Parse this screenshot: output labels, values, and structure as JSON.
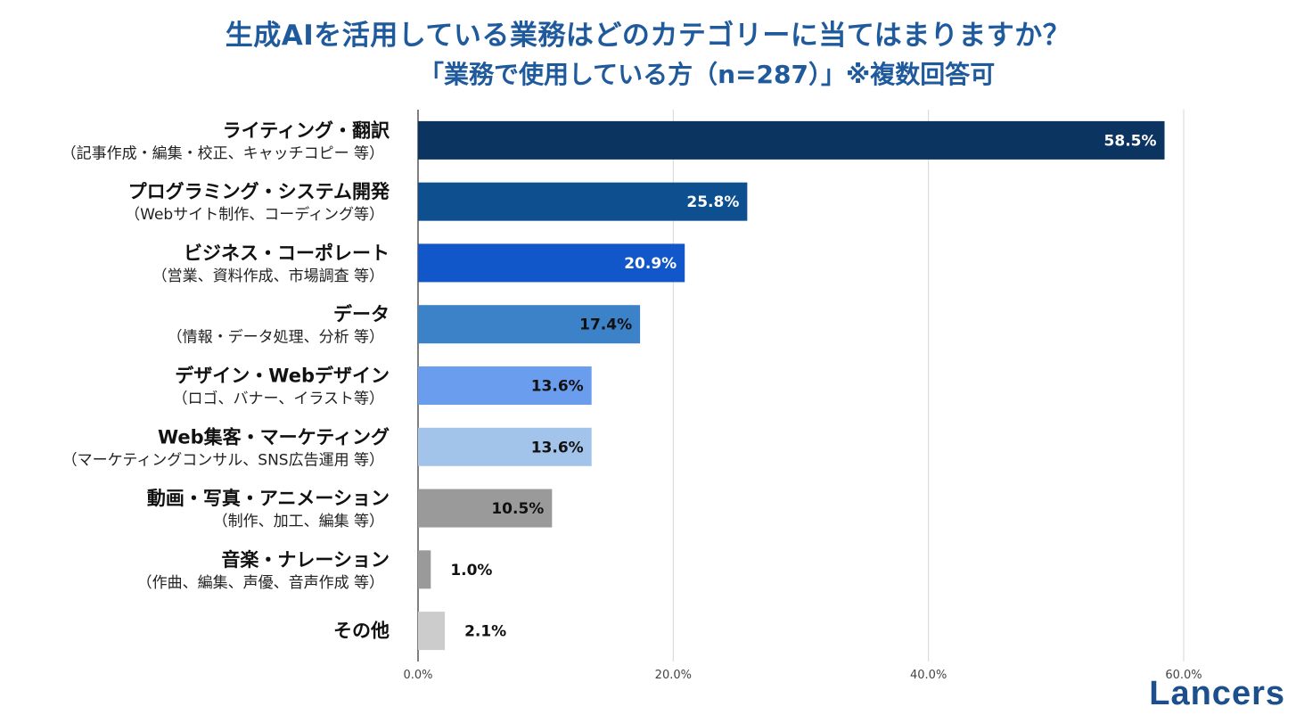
{
  "title": {
    "line1": "生成AIを活用している業務はどのカテゴリーに当てはまりますか？",
    "line2": "「業務で使用している方（n=287）」※複数回答可"
  },
  "logo": "Lancers",
  "chart_data": {
    "type": "bar",
    "orientation": "horizontal",
    "categories": [
      {
        "label": "ライティング・翻訳",
        "sublabel": "（記事作成・編集・校正、キャッチコピー 等）"
      },
      {
        "label": "プログラミング・システム開発",
        "sublabel": "（Webサイト制作、コーディング等）"
      },
      {
        "label": "ビジネス・コーポレート",
        "sublabel": "（営業、資料作成、市場調査 等）"
      },
      {
        "label": "データ",
        "sublabel": "（情報・データ処理、分析 等）"
      },
      {
        "label": "デザイン・Webデザイン",
        "sublabel": "（ロゴ、バナー、イラスト等）"
      },
      {
        "label": "Web集客・マーケティング",
        "sublabel": "（マーケティングコンサル、SNS広告運用 等）"
      },
      {
        "label": "動画・写真・アニメーション",
        "sublabel": "（制作、加工、編集 等）"
      },
      {
        "label": "音楽・ナレーション",
        "sublabel": "（作曲、編集、声優、音声作成 等）"
      },
      {
        "label": "その他",
        "sublabel": ""
      }
    ],
    "values": [
      58.5,
      25.8,
      20.9,
      17.4,
      13.6,
      13.6,
      10.5,
      1.0,
      2.1
    ],
    "value_labels": [
      "58.5%",
      "25.8%",
      "20.9%",
      "17.4%",
      "13.6%",
      "13.6%",
      "10.5%",
      "1.0%",
      "2.1%"
    ],
    "bar_colors": [
      "#0b3560",
      "#0e4f8f",
      "#1257c9",
      "#3b82c8",
      "#6a9ded",
      "#a3c4ea",
      "#9a9a9a",
      "#9a9a9a",
      "#cccccc"
    ],
    "value_label_colors": [
      "#ffffff",
      "#ffffff",
      "#ffffff",
      "#111111",
      "#111111",
      "#111111",
      "#111111",
      "#111111",
      "#111111"
    ],
    "xlim": [
      0,
      60
    ],
    "xticks": [
      0,
      20,
      40,
      60
    ],
    "xtick_labels": [
      "0.0%",
      "20.0%",
      "40.0%",
      "60.0%"
    ],
    "grid": true,
    "legend": "none"
  }
}
